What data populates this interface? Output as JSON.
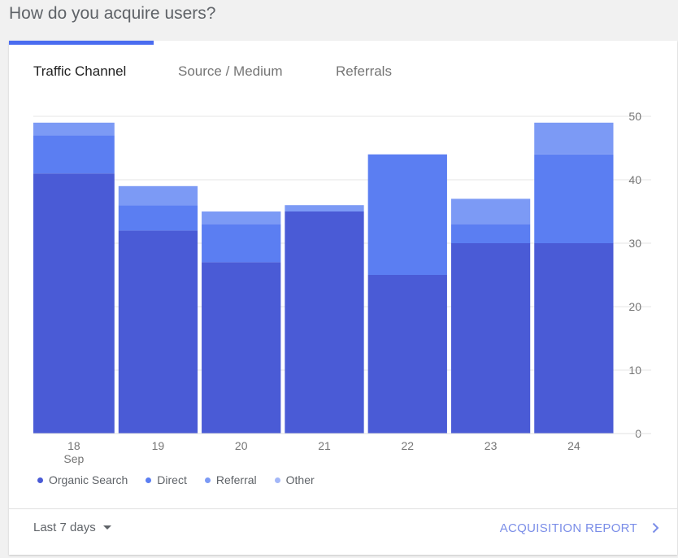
{
  "page": {
    "title": "How do you acquire users?"
  },
  "tabs": [
    {
      "label": "Traffic Channel",
      "active": true
    },
    {
      "label": "Source / Medium",
      "active": false
    },
    {
      "label": "Referrals",
      "active": false
    }
  ],
  "colors": {
    "organic": "#4a5bd6",
    "direct": "#5b7ef2",
    "referral": "#7c9af5",
    "other": "#a3b7f8",
    "accent": "#4a6cf0",
    "link": "#7b8ee8"
  },
  "chart_data": {
    "type": "bar",
    "stacked": true,
    "categories": [
      "18",
      "19",
      "20",
      "21",
      "22",
      "23",
      "24"
    ],
    "category_sublabels": [
      "Sep",
      "",
      "",
      "",
      "",
      "",
      ""
    ],
    "series": [
      {
        "name": "Organic Search",
        "values": [
          41,
          32,
          27,
          35,
          25,
          30,
          30
        ]
      },
      {
        "name": "Direct",
        "values": [
          6,
          4,
          6,
          0,
          19,
          3,
          14
        ]
      },
      {
        "name": "Referral",
        "values": [
          2,
          3,
          2,
          1,
          0,
          4,
          5
        ]
      },
      {
        "name": "Other",
        "values": [
          0,
          0,
          0,
          0,
          0,
          0,
          0
        ]
      }
    ],
    "yticks": [
      0,
      10,
      20,
      30,
      40,
      50
    ],
    "ylim": [
      0,
      50
    ],
    "y_axis_position": "right",
    "grid": true,
    "legend_position": "bottom"
  },
  "footer": {
    "range_label": "Last 7 days",
    "report_link": "ACQUISITION REPORT"
  }
}
